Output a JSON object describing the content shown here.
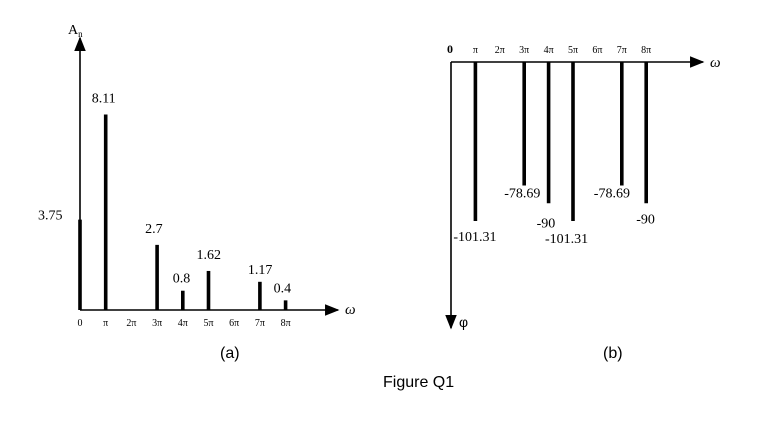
{
  "figure_caption": "Figure Q1",
  "chart_data": [
    {
      "type": "bar",
      "panel_label": "(a)",
      "ylabel": "A",
      "ylabel_sub": "n",
      "xlabel": "ω",
      "tick_labels": [
        "0",
        "π",
        "2π",
        "3π",
        "4π",
        "5π",
        "6π",
        "7π",
        "8π"
      ],
      "x": [
        0,
        1,
        3,
        4,
        5,
        7,
        8
      ],
      "values": [
        3.75,
        8.11,
        2.7,
        0.8,
        1.62,
        1.17,
        0.4
      ],
      "data_labels": [
        "3.75",
        "8.11",
        "2.7",
        "0.8",
        "1.62",
        "1.17",
        "0.4"
      ],
      "ylim": [
        0,
        10
      ],
      "x_unit": "π"
    },
    {
      "type": "bar",
      "panel_label": "(b)",
      "ylabel": "φ",
      "xlabel": "ω",
      "tick_labels": [
        "0",
        "π",
        "2π",
        "3π",
        "4π",
        "5π",
        "6π",
        "7π",
        "8π"
      ],
      "x": [
        1,
        3,
        4,
        5,
        7,
        8
      ],
      "values": [
        -101.31,
        -78.69,
        -90,
        -101.31,
        -78.69,
        -90
      ],
      "data_labels": [
        "-101.31",
        "-78.69",
        "-90",
        "-101.31",
        "-78.69",
        "-90"
      ],
      "ylim": [
        -130,
        0
      ],
      "x_unit": "π"
    }
  ]
}
